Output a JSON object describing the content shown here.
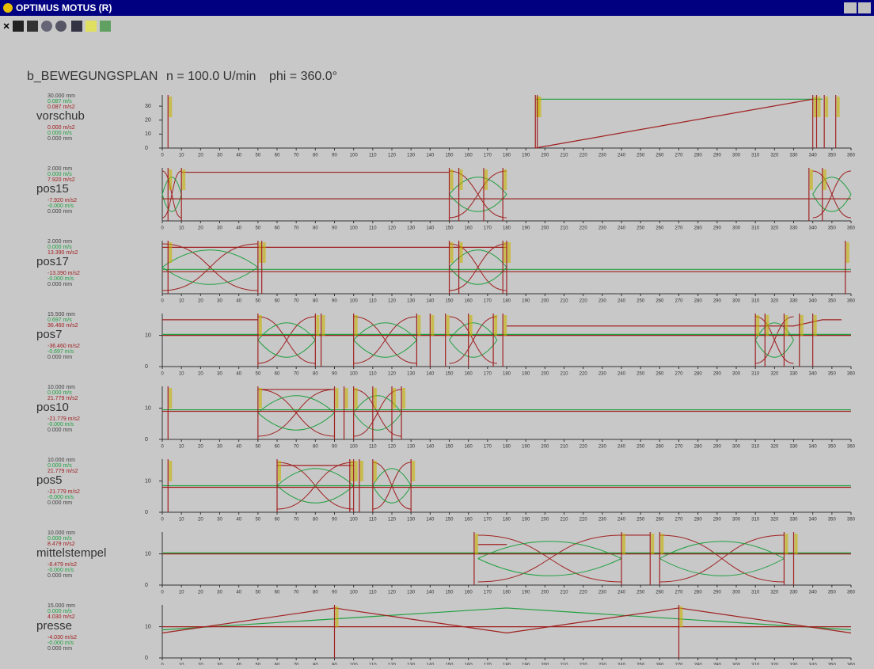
{
  "window": {
    "title": "OPTIMUS MOTUS (R)",
    "close_icon": "×"
  },
  "heading": {
    "name": "b_BEWEGUNGSPLAN",
    "speed": "n = 100.0 U/min",
    "angle": "phi = 360.0°"
  },
  "axis": {
    "xlim": [
      0,
      360
    ],
    "xticks": [
      0,
      10,
      20,
      30,
      40,
      50,
      60,
      70,
      80,
      90,
      100,
      110,
      120,
      130,
      140,
      150,
      160,
      170,
      180,
      190,
      200,
      210,
      220,
      230,
      240,
      250,
      260,
      270,
      280,
      290,
      300,
      310,
      320,
      330,
      340,
      350,
      360
    ]
  },
  "panels": [
    {
      "name": "vorschub",
      "stats_top": [
        "30.000 mm",
        "0.087 m/s",
        "0.087 m/s2"
      ],
      "stats_bottom": [
        "0.000 m/s2",
        "0.000 m/s",
        "0.000 mm"
      ],
      "ylim": [
        0,
        38
      ],
      "yticks": [
        0,
        10,
        20,
        30
      ],
      "red": [
        [
          [
            195,
            0
          ],
          [
            340,
            35
          ]
        ]
      ],
      "green": [
        [
          [
            195,
            35
          ],
          [
            345,
            35
          ]
        ]
      ],
      "boundaries": [
        3,
        195,
        196,
        340,
        342,
        346,
        352
      ],
      "crossings": []
    },
    {
      "name": "pos15",
      "stats_top": [
        "2.000 mm",
        "0.000 m/s",
        "7.920 m/s2"
      ],
      "stats_bottom": [
        "-7.920 m/s2",
        "-0.000 m/s",
        "0.000 mm"
      ],
      "ylim": [
        -1,
        1.4
      ],
      "yticks": [],
      "red": [
        [
          [
            10,
            1.2
          ],
          [
            150,
            1.2
          ]
        ],
        [
          [
            0,
            0
          ],
          [
            360,
            0
          ]
        ]
      ],
      "green": [
        [
          [
            0,
            0
          ],
          [
            360,
            0
          ]
        ]
      ],
      "boundaries": [
        3,
        10,
        150,
        155,
        168,
        178,
        338,
        345
      ],
      "crossings": [
        [
          0,
          10
        ],
        [
          150,
          180
        ],
        [
          340,
          360
        ]
      ]
    },
    {
      "name": "pos17",
      "stats_top": [
        "2.000 mm",
        "0.000 m/s",
        "13.390 m/s2"
      ],
      "stats_bottom": [
        "-13.390 m/s2",
        "-0.000 m/s",
        "0.000 mm"
      ],
      "ylim": [
        -1,
        1.4
      ],
      "yticks": [],
      "red": [
        [
          [
            0,
            1.1
          ],
          [
            180,
            1.1
          ]
        ],
        [
          [
            0,
            0
          ],
          [
            360,
            0
          ]
        ]
      ],
      "green": [
        [
          [
            0,
            0.1
          ],
          [
            360,
            0.1
          ]
        ]
      ],
      "boundaries": [
        3,
        50,
        52,
        150,
        155,
        178,
        180,
        357
      ],
      "crossings": [
        [
          0,
          50
        ],
        [
          150,
          180
        ]
      ]
    },
    {
      "name": "pos7",
      "stats_top": [
        "15.500 mm",
        "0.697 m/s",
        "36.460 m/s2"
      ],
      "stats_bottom": [
        "-36.460 m/s2",
        "-0.697 m/s",
        "0.000 mm"
      ],
      "ylim": [
        0,
        17
      ],
      "yticks": [
        0,
        10
      ],
      "red": [
        [
          [
            0,
            15
          ],
          [
            50,
            15
          ]
        ],
        [
          [
            180,
            13
          ],
          [
            330,
            13
          ],
          [
            345,
            15
          ],
          [
            355,
            15
          ]
        ],
        [
          [
            0,
            10
          ],
          [
            360,
            10
          ]
        ]
      ],
      "green": [
        [
          [
            0,
            10.3
          ],
          [
            360,
            10.3
          ]
        ]
      ],
      "boundaries": [
        50,
        80,
        83,
        100,
        133,
        140,
        148,
        160,
        173,
        178,
        310,
        315,
        325,
        333,
        340
      ],
      "crossings": [
        [
          50,
          80
        ],
        [
          100,
          133
        ],
        [
          150,
          175
        ],
        [
          310,
          330
        ]
      ]
    },
    {
      "name": "pos10",
      "stats_top": [
        "10.000 mm",
        "0.000 m/s",
        "21.779 m/s2"
      ],
      "stats_bottom": [
        "-21.779 m/s2",
        "-0.000 m/s",
        "0.000 mm"
      ],
      "ylim": [
        0,
        17
      ],
      "yticks": [
        0,
        10
      ],
      "red": [
        [
          [
            0,
            9
          ],
          [
            360,
            9
          ]
        ],
        [
          [
            50,
            16
          ],
          [
            90,
            16
          ]
        ]
      ],
      "green": [
        [
          [
            0,
            9.5
          ],
          [
            360,
            9.5
          ]
        ]
      ],
      "boundaries": [
        3,
        50,
        90,
        95,
        100,
        110,
        120,
        125
      ],
      "crossings": [
        [
          50,
          90
        ],
        [
          100,
          125
        ]
      ]
    },
    {
      "name": "pos5",
      "stats_top": [
        "10.000 mm",
        "0.000 m/s",
        "21.779 m/s2"
      ],
      "stats_bottom": [
        "-21.779 m/s2",
        "-0.000 m/s",
        "0.000 mm"
      ],
      "ylim": [
        0,
        17
      ],
      "yticks": [
        0,
        10
      ],
      "red": [
        [
          [
            0,
            8
          ],
          [
            360,
            8
          ]
        ],
        [
          [
            60,
            15
          ],
          [
            100,
            15
          ]
        ]
      ],
      "green": [
        [
          [
            0,
            8.5
          ],
          [
            360,
            8.5
          ]
        ]
      ],
      "boundaries": [
        3,
        60,
        98,
        100,
        103,
        110,
        130
      ],
      "crossings": [
        [
          60,
          100
        ],
        [
          110,
          130
        ]
      ]
    },
    {
      "name": "mittelstempel",
      "stats_top": [
        "10.000 mm",
        "0.000 m/s",
        "8.479 m/s2"
      ],
      "stats_bottom": [
        "-8.479 m/s2",
        "-0.000 m/s",
        "0.000 mm"
      ],
      "ylim": [
        0,
        17
      ],
      "yticks": [
        0,
        10
      ],
      "red": [
        [
          [
            0,
            10
          ],
          [
            360,
            10
          ]
        ],
        [
          [
            165,
            13
          ],
          [
            180,
            13
          ]
        ],
        [
          [
            240,
            16
          ],
          [
            255,
            16
          ]
        ]
      ],
      "green": [
        [
          [
            0,
            10.3
          ],
          [
            360,
            10.3
          ]
        ]
      ],
      "boundaries": [
        163,
        240,
        255,
        260,
        325,
        330
      ],
      "crossings": [
        [
          165,
          240
        ],
        [
          260,
          325
        ]
      ]
    },
    {
      "name": "presse",
      "stats_top": [
        "15.000 mm",
        "0.000 m/s",
        "4.030 m/s2"
      ],
      "stats_bottom": [
        "-4.030 m/s2",
        "-0.000 m/s",
        "0.000 mm"
      ],
      "ylim": [
        0,
        17
      ],
      "yticks": [
        0,
        10
      ],
      "red": [
        [
          [
            0,
            8
          ],
          [
            90,
            16
          ],
          [
            180,
            8
          ],
          [
            270,
            16
          ],
          [
            360,
            8
          ]
        ],
        [
          [
            0,
            10
          ],
          [
            360,
            10
          ]
        ]
      ],
      "green": [
        [
          [
            0,
            9
          ],
          [
            180,
            16
          ],
          [
            360,
            9
          ]
        ]
      ],
      "boundaries": [
        90,
        270
      ],
      "crossings": []
    }
  ]
}
